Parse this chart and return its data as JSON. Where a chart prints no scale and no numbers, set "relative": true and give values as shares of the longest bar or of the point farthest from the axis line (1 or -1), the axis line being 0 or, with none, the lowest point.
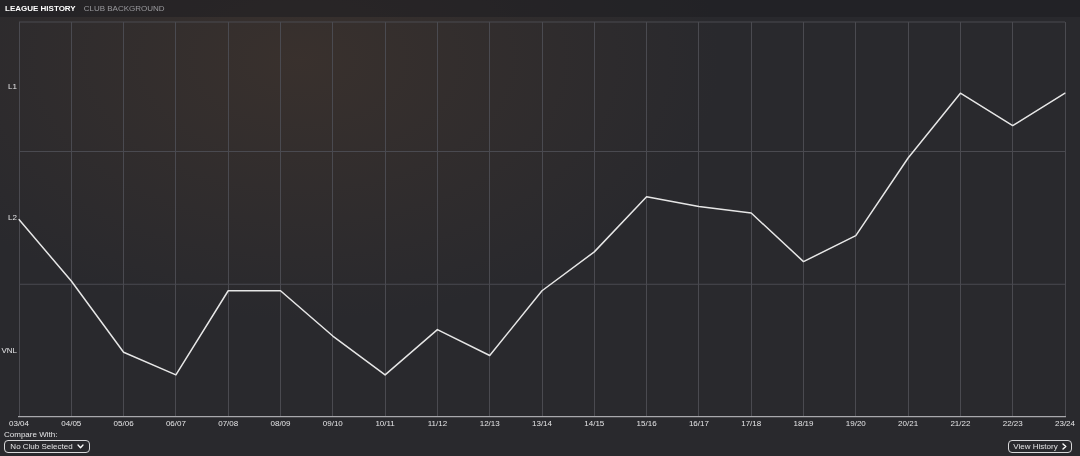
{
  "chart_data": {
    "type": "line",
    "title": "LEAGUE HISTORY",
    "relative": true,
    "categories": [
      "03/04",
      "04/05",
      "05/06",
      "06/07",
      "07/08",
      "08/09",
      "09/10",
      "10/11",
      "11/12",
      "12/13",
      "13/14",
      "14/15",
      "15/16",
      "16/17",
      "17/18",
      "18/19",
      "19/20",
      "20/21",
      "21/22",
      "22/23",
      "23/24"
    ],
    "series": [
      {
        "color": "#e6e6e6",
        "values": [
          0.61,
          0.42,
          0.2,
          0.13,
          0.39,
          0.39,
          0.25,
          0.13,
          0.27,
          0.19,
          0.39,
          0.51,
          0.68,
          0.65,
          0.63,
          0.48,
          0.56,
          0.8,
          1,
          0.9,
          1
        ]
      }
    ],
    "ref_lines": [
      {
        "axis": "y",
        "value": 0.41
      },
      {
        "axis": "y",
        "value": 0.82
      },
      {
        "axis": "y",
        "value": 1.22
      }
    ],
    "grid": "x",
    "legend": false,
    "annotations": [
      "CLUB BACKGROUND",
      "L1",
      "L2",
      "VNL",
      "Compare With:",
      "No Club Selected",
      "View History"
    ]
  }
}
